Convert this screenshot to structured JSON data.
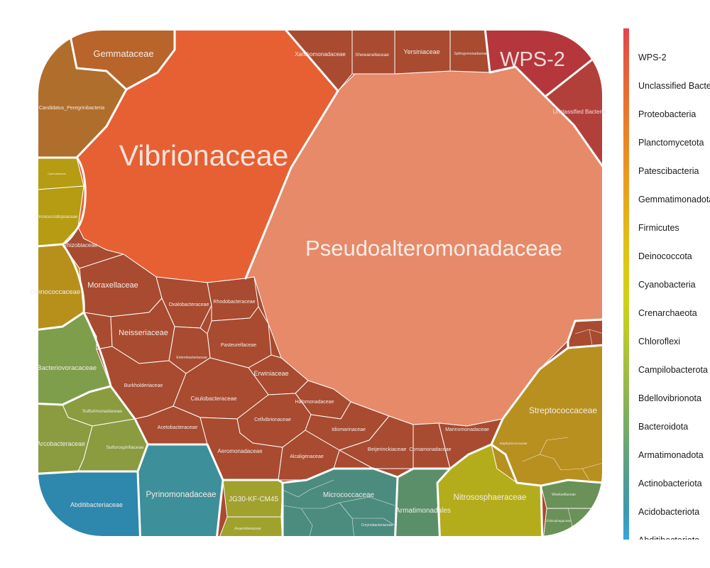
{
  "chart_data": {
    "type": "voronoi-treemap",
    "title": "",
    "legend": {
      "placement": "right",
      "items": [
        {
          "label": "WPS-2",
          "color": "#e3434d"
        },
        {
          "label": "Unclassified Bacteria",
          "color": "#e35a3f"
        },
        {
          "label": "Proteobacteria",
          "color": "#e66a34"
        },
        {
          "label": "Planctomycetota",
          "color": "#e97a2c"
        },
        {
          "label": "Patescibacteria",
          "color": "#eb8a25"
        },
        {
          "label": "Gemmatimonadota",
          "color": "#ea9b20"
        },
        {
          "label": "Firmicutes",
          "color": "#e7ab1c"
        },
        {
          "label": "Deinococcota",
          "color": "#e2bc18"
        },
        {
          "label": "Cyanobacteria",
          "color": "#dbca16"
        },
        {
          "label": "Crenarchaeota",
          "color": "#cfd01c"
        },
        {
          "label": "Chloroflexi",
          "color": "#bccb2a"
        },
        {
          "label": "Campilobacterota",
          "color": "#a8c23c"
        },
        {
          "label": "Bdellovibrionota",
          "color": "#93b74e"
        },
        {
          "label": "Bacteroidota",
          "color": "#7dae62"
        },
        {
          "label": "Armatimonadota",
          "color": "#67a578"
        },
        {
          "label": "Actinobacteriota",
          "color": "#519d90"
        },
        {
          "label": "Acidobacteriota",
          "color": "#3e99ad"
        },
        {
          "label": "Abditibacteriota",
          "color": "#35a6dc"
        }
      ]
    },
    "phyla": [
      {
        "name": "WPS-2",
        "color": "#b5373b",
        "families": [
          "WPS-2"
        ]
      },
      {
        "name": "Unclassified Bacteria",
        "color": "#b2403a",
        "families": [
          "Unclassified Bacteria"
        ]
      },
      {
        "name": "Proteobacteria",
        "color": "#a84b30",
        "families": [
          "Vibrionaceae",
          "Pseudoalteromonadaceae",
          "Xanthomonadaceae",
          "Shewanellaceae",
          "Yersiniaceae",
          "Sphingomonadaceae",
          "Rhizobiaceae",
          "Moraxellaceae",
          "Oxalobacteraceae",
          "Rhodobacteraceae",
          "Neisseriaceae",
          "Pasteurellaceae",
          "Enterobacteriaceae",
          "Burkholderiaceae",
          "Erwiniaceae",
          "Caulobacteraceae",
          "Halomonadaceae",
          "Cellvibrionaceae",
          "Acetobacteraceae",
          "Aeromonadaceae",
          "Idiomarinaceae",
          "Alcaligenaceae",
          "Beijerinckiaceae",
          "Comamonadaceae",
          "Marinomonadaceae"
        ]
      },
      {
        "name": "Planctomycetota",
        "color": "#b8642a",
        "families": [
          "Gemmataceae"
        ]
      },
      {
        "name": "Patescibacteria",
        "color": "#b06e2c",
        "families": [
          "Candidatus_Peregrinibacteria"
        ]
      },
      {
        "name": "Cyanobacteria",
        "color": "#b59c12",
        "families": [
          "Cyanobiaceae",
          "Chroococcidiopsaceae"
        ]
      },
      {
        "name": "Deinococcota",
        "color": "#b7901b",
        "families": [
          "Deinococcaceae"
        ]
      },
      {
        "name": "Bdellovibrionota",
        "color": "#7f9e4b",
        "families": [
          "Bacteriovoracaceae"
        ]
      },
      {
        "name": "Campilobacterota",
        "color": "#8a9c3f",
        "families": [
          "Arcobacteraceae",
          "Sulfurimonadaceae",
          "Sulfurospirillaceae"
        ]
      },
      {
        "name": "Abditibacteriota",
        "color": "#2e87ad",
        "families": [
          "Abditibacteriaceae"
        ]
      },
      {
        "name": "Acidobacteriota",
        "color": "#3d8f99",
        "families": [
          "Pyrinomonadaceae"
        ]
      },
      {
        "name": "Chloroflexi",
        "color": "#a1a22e",
        "families": [
          "JG30-KF-CM45",
          "Anaerolineaceae"
        ]
      },
      {
        "name": "Actinobacteriota",
        "color": "#4b8c7e",
        "families": [
          "Micrococcaceae",
          "Corynebacteriaceae"
        ]
      },
      {
        "name": "Armatimonadota",
        "color": "#5b8f6a",
        "families": [
          "Armatimonadales"
        ]
      },
      {
        "name": "Crenarchaeota",
        "color": "#b4ad1b",
        "families": [
          "Nitrososphaeraceae"
        ]
      },
      {
        "name": "Firmicutes",
        "color": "#b8901f",
        "families": [
          "Streptococcaceae",
          "Staphylococcaceae"
        ]
      },
      {
        "name": "Bacteroidota",
        "color": "#6a9158",
        "families": [
          "Weeksellaceae",
          "Chitinophagaceae"
        ]
      }
    ]
  },
  "labels": {
    "wps2": "WPS-2",
    "unclassified": "Unclassified Bacteria",
    "vibrionaceae": "Vibrionaceae",
    "pseudoalteromonadaceae": "Pseudoalteromonadaceae",
    "gemmataceae": "Gemmataceae",
    "peregrinibacteria": "Candidatus_Peregrinibacteria",
    "cyanobiaceae": "Cyanobiaceae",
    "chroococcidiopsaceae": "Chroococcidiopsaceae",
    "xanthomonadaceae": "Xanthomonadaceae",
    "shewanellaceae": "Shewanellaceae",
    "yersiniaceae": "Yersiniaceae",
    "sphingomonadaceae": "Sphingomonadaceae",
    "rhizobiaceae": "Rhizobiaceae",
    "moraxellaceae": "Moraxellaceae",
    "deinococcaceae": "Deinococcaceae",
    "oxalobacteraceae": "Oxalobacteraceae",
    "rhodobacteraceae": "Rhodobacteraceae",
    "neisseriaceae": "Neisseriaceae",
    "pasteurellaceae": "Pasteurellaceae",
    "enterobacteriaceae": "Enterobacteriaceae",
    "burkholderiaceae": "Burkholderiaceae",
    "erwiniaceae": "Erwiniaceae",
    "caulobacteraceae": "Caulobacteraceae",
    "halomonadaceae": "Halomonadaceae",
    "cellvibrionaceae": "Cellvibrionaceae",
    "acetobacteraceae": "Acetobacteraceae",
    "aeromonadaceae": "Aeromonadaceae",
    "idiomarinaceae": "Idiomarinaceae",
    "alcaligenaceae": "Alcaligenaceae",
    "beijerinckiaceae": "Beijerinckiaceae",
    "comamonadaceae": "Comamonadaceae",
    "marinomonadaceae": "Marinomonadaceae",
    "bacteriovoracaceae": "Bacteriovoracaceae",
    "sulfurimonadaceae": "Sulfurimonadaceae",
    "arcobacteraceae": "Arcobacteraceae",
    "sulfurospirillaceae": "Sulfurospirillaceae",
    "abditibacteriaceae": "Abditibacteriaceae",
    "pyrinomonadaceae": "Pyrinomonadaceae",
    "jg30": "JG30-KF-CM45",
    "anaerolineaceae": "Anaerolineaceae",
    "micrococcaceae": "Micrococcaceae",
    "corynebacteriaceae": "Corynebacteriaceae",
    "armatimonadales": "Armatimonadales",
    "nitrososphaeraceae": "Nitrososphaeraceae",
    "streptococcaceae": "Streptococcaceae",
    "staphylococcaceae": "Staphylococcaceae",
    "weeksellaceae": "Weeksellaceae",
    "chitinophagaceae": "Chitinophagaceae"
  }
}
